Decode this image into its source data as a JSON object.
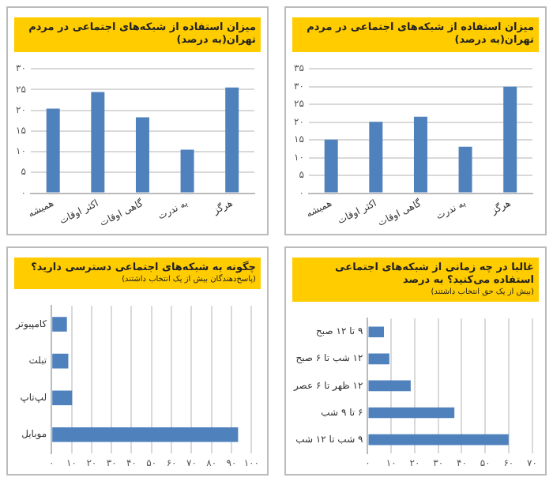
{
  "chart_data": [
    {
      "type": "bar",
      "title": "میزان استفاده از شبکه‌های اجتماعی در مردم تهران(به درصد)",
      "categories": [
        "همیشه",
        "اکثر اوقات",
        "گاهی اوقات",
        "به ندرت",
        "هرگز"
      ],
      "values": [
        20.4,
        24.4,
        18.3,
        10.5,
        25.5
      ],
      "color": "#4f81bd",
      "ylim": [
        0,
        30
      ],
      "yticks": [
        {
          "value": 0,
          "label": "۰"
        },
        {
          "value": 5,
          "label": "۵"
        },
        {
          "value": 10,
          "label": "۱۰"
        },
        {
          "value": 15,
          "label": "۱۵"
        },
        {
          "value": 20,
          "label": "۲۰"
        },
        {
          "value": 25,
          "label": "۲۵"
        },
        {
          "value": 30,
          "label": "۳۰"
        }
      ],
      "grid": "y",
      "legend": false
    },
    {
      "type": "bar",
      "title": "میزان استفاده از شبکه‌های اجتماعی در مردم تهران(به درصد)",
      "categories": [
        "همیشه",
        "اکثر اوقات",
        "گاهی اوقات",
        "به ندرت",
        "هرگز"
      ],
      "values": [
        15.1,
        20.1,
        21.5,
        13.1,
        30
      ],
      "color": "#4f81bd",
      "ylim": [
        0,
        35
      ],
      "yticks": [
        {
          "value": 0,
          "label": "۰"
        },
        {
          "value": 5,
          "label": "۵"
        },
        {
          "value": 10,
          "label": "۱۰"
        },
        {
          "value": 15,
          "label": "۱۵"
        },
        {
          "value": 20,
          "label": "۲۰"
        },
        {
          "value": 25,
          "label": "۲۵"
        },
        {
          "value": 30,
          "label": "۳۰"
        },
        {
          "value": 35,
          "label": "۳۵"
        }
      ],
      "grid": "y",
      "legend": false
    },
    {
      "type": "bar",
      "title": "چگونه به شبکه‌های اجتماعی دسترسی دارید؟",
      "subtitle": "(پاسخ‌دهندگان بیش از یک انتخاب داشتند)",
      "orientation": "horizontal",
      "categories": [
        "کامپیوتر",
        "تبلت",
        "لپ‌تاپ",
        "موبایل"
      ],
      "values": [
        7.7,
        8.4,
        10.3,
        93.3
      ],
      "color": "#4f81bd",
      "xlim": [
        0,
        100
      ],
      "xticks": [
        {
          "value": 0,
          "label": "۰"
        },
        {
          "value": 10,
          "label": "۱۰"
        },
        {
          "value": 20,
          "label": "۲۰"
        },
        {
          "value": 30,
          "label": "۳۰"
        },
        {
          "value": 40,
          "label": "۴۰"
        },
        {
          "value": 50,
          "label": "۵۰"
        },
        {
          "value": 60,
          "label": "۶۰"
        },
        {
          "value": 70,
          "label": "۷۰"
        },
        {
          "value": 80,
          "label": "۸۰"
        },
        {
          "value": 90,
          "label": "۹۰"
        },
        {
          "value": 100,
          "label": "۱۰۰"
        }
      ],
      "grid": "x",
      "legend": false
    },
    {
      "type": "bar",
      "title": "غالبا در چه زمانی از شبکه‌های اجتماعی استفاده می‌کنید؟ به درصد",
      "subtitle": "(بیش از یک حق انتخاب داشتند)",
      "orientation": "horizontal",
      "categories": [
        "۹ تا ۱۲ صبح",
        "۱۲ شب تا ۶ صبح",
        "۱۲ ظهر تا ۶ عصر",
        "۶ تا ۹ شب",
        "۹ شب تا ۱۲ شب"
      ],
      "values": [
        6.9,
        9.2,
        18.3,
        36.9,
        60
      ],
      "color": "#4f81bd",
      "xlim": [
        0,
        70
      ],
      "xticks": [
        {
          "value": 0,
          "label": "۰"
        },
        {
          "value": 10,
          "label": "۱۰"
        },
        {
          "value": 20,
          "label": "۲۰"
        },
        {
          "value": 30,
          "label": "۳۰"
        },
        {
          "value": 40,
          "label": "۴۰"
        },
        {
          "value": 50,
          "label": "۵۰"
        },
        {
          "value": 60,
          "label": "۶۰"
        },
        {
          "value": 70,
          "label": "۷۰"
        }
      ],
      "grid": "x",
      "legend": false
    }
  ]
}
